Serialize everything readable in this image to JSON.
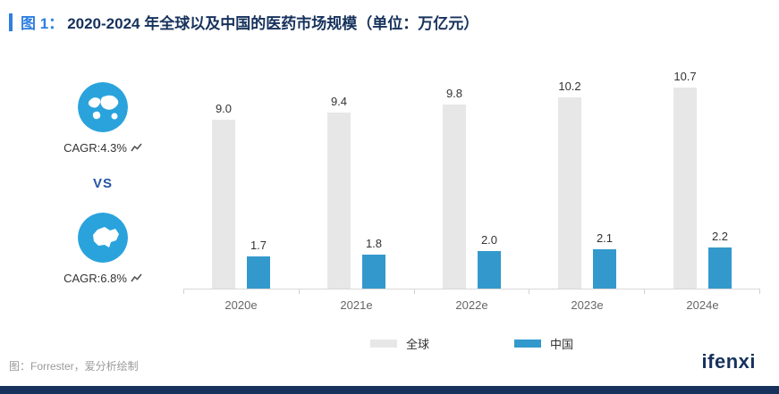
{
  "colors": {
    "accent_blue": "#2f7fe0",
    "navy": "#16325c",
    "badge_blue": "#2aa3dc",
    "bar_gray": "#e7e7e7",
    "bar_blue": "#3399cc"
  },
  "header": {
    "figure_label": "图 1：",
    "title": "2020-2024 年全球以及中国的医药市场规模（单位：万亿元）"
  },
  "side": {
    "global_cagr": "CAGR:4.3%",
    "vs": "VS",
    "china_cagr": "CAGR:6.8%"
  },
  "chart_data": {
    "type": "bar",
    "title": "2020-2024 年全球以及中国的医药市场规模（单位：万亿元）",
    "categories": [
      "2020e",
      "2021e",
      "2022e",
      "2023e",
      "2024e"
    ],
    "series": [
      {
        "name": "全球",
        "color": "#e7e7e7",
        "values": [
          9.0,
          9.4,
          9.8,
          10.2,
          10.7
        ]
      },
      {
        "name": "中国",
        "color": "#3399cc",
        "values": [
          1.7,
          1.8,
          2.0,
          2.1,
          2.2
        ]
      }
    ],
    "ylim": [
      0,
      12
    ],
    "grid": false,
    "legend_position": "bottom",
    "value_labels": true
  },
  "footer": {
    "source": "图：Forrester，爱分析绘制",
    "logo": "ifenxi"
  }
}
